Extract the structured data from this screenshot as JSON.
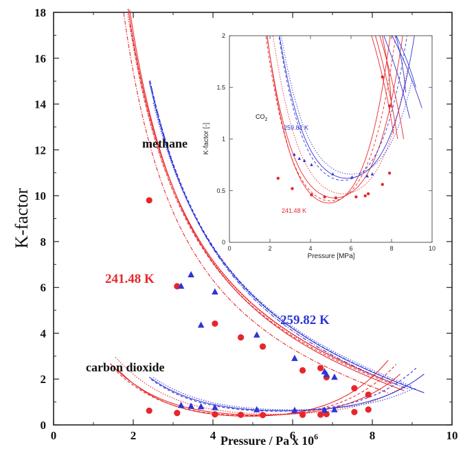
{
  "chart_data": [
    {
      "type": "scatter",
      "title": "",
      "xlabel": "Pressure / Pa x 10",
      "xlabel_superscript": "6",
      "ylabel": "K-factor",
      "xlim": [
        0,
        10
      ],
      "ylim": [
        0,
        18
      ],
      "xticks": [
        "0",
        "2",
        "4",
        "6",
        "8",
        "10"
      ],
      "yticks": [
        "0",
        "2",
        "4",
        "6",
        "8",
        "10",
        "12",
        "14",
        "16",
        "18"
      ],
      "grid": false,
      "colors": {
        "red": "#e8262a",
        "blue": "#2e35d6",
        "axis": "#222222"
      },
      "annotations": [
        {
          "text": "methane",
          "color": "#111111"
        },
        {
          "text": "carbon dioxide",
          "color": "#111111"
        },
        {
          "text": "241.48 K",
          "color": "#e8262a"
        },
        {
          "text": "259.82 K",
          "color": "#2e35d6"
        }
      ],
      "series": [
        {
          "color": "#e8262a",
          "marker": "circle",
          "x": [
            2.4,
            3.1,
            4.05,
            4.7,
            5.25,
            6.25,
            6.7,
            6.85,
            7.55,
            7.9
          ],
          "y": [
            9.8,
            6.05,
            4.42,
            3.82,
            3.42,
            2.38,
            2.48,
            2.08,
            1.6,
            1.32
          ]
        },
        {
          "color": "#2e35d6",
          "marker": "triangle",
          "x": [
            3.2,
            3.45,
            3.7,
            4.05,
            5.1,
            6.05,
            6.8,
            6.85,
            7.05
          ],
          "y": [
            6.05,
            6.55,
            4.35,
            5.8,
            3.92,
            2.9,
            2.32,
            2.2,
            2.08
          ]
        },
        {
          "color": "#e8262a",
          "marker": "circle",
          "x": [
            2.4,
            3.1,
            4.05,
            4.7,
            5.25,
            6.25,
            6.7,
            6.85,
            7.55,
            7.9
          ],
          "y": [
            0.62,
            0.52,
            0.46,
            0.44,
            0.43,
            0.44,
            0.45,
            0.47,
            0.56,
            0.67
          ]
        },
        {
          "color": "#2e35d6",
          "marker": "triangle",
          "x": [
            3.2,
            3.45,
            3.7,
            4.05,
            5.1,
            6.05,
            6.8,
            7.05
          ],
          "y": [
            0.85,
            0.81,
            0.79,
            0.75,
            0.66,
            0.63,
            0.64,
            0.66
          ]
        }
      ]
    },
    {
      "type": "scatter",
      "title": "",
      "xlabel": "Pressure [MPa]",
      "ylabel": "K-factor [-]",
      "xlim": [
        0,
        10
      ],
      "ylim": [
        0,
        2
      ],
      "xticks": [
        "0",
        "2",
        "4",
        "6",
        "8",
        "10"
      ],
      "yticks": [
        "0",
        "0.5",
        "1",
        "1.5",
        "2"
      ],
      "grid": false,
      "annotations": [
        {
          "text": "CO",
          "subscript": "2",
          "color": "#111111"
        },
        {
          "text": "259.82 K",
          "color": "#2e35d6"
        },
        {
          "text": "241.48 K",
          "color": "#e8262a"
        }
      ],
      "series": [
        {
          "color": "#e8262a",
          "marker": "circle",
          "x": [
            2.4,
            3.1,
            4.05,
            4.7,
            5.25,
            6.25,
            6.7,
            6.85,
            7.55,
            7.9,
            7.55,
            7.9
          ],
          "y": [
            0.62,
            0.52,
            0.46,
            0.44,
            0.43,
            0.44,
            0.45,
            0.47,
            0.56,
            0.67,
            1.6,
            1.32
          ]
        },
        {
          "color": "#2e35d6",
          "marker": "triangle",
          "x": [
            3.2,
            3.45,
            3.7,
            4.05,
            5.1,
            6.05,
            6.8,
            7.05
          ],
          "y": [
            0.85,
            0.81,
            0.79,
            0.75,
            0.66,
            0.63,
            0.64,
            0.66
          ]
        }
      ]
    }
  ]
}
